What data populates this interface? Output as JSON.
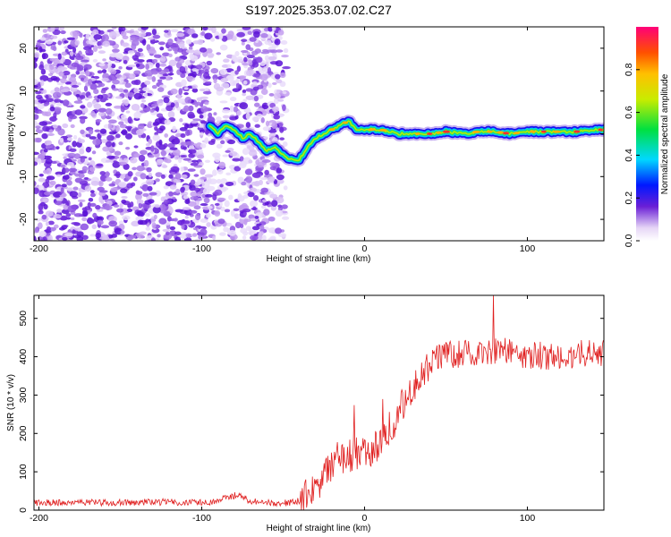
{
  "title": "S197.2025.353.07.02.C27",
  "chart_data": [
    {
      "type": "heatmap",
      "name": "spectrogram",
      "xlabel": "Height of straight line (km)",
      "ylabel": "Frequency (Hz)",
      "xlim": [
        -203,
        147
      ],
      "ylim": [
        -25,
        25
      ],
      "xticks": [
        -200,
        -100,
        0,
        100
      ],
      "yticks": [
        -20,
        -10,
        0,
        10,
        20
      ],
      "colorbar": {
        "label": "Normalized spectral amplitude",
        "range": [
          0,
          1
        ],
        "ticks": [
          0.0,
          0.2,
          0.4,
          0.6,
          0.8
        ],
        "tick_labels": [
          "0.0",
          "0.2",
          "0.4",
          "0.6",
          "0.8"
        ]
      },
      "ridge": {
        "x": [
          -95,
          -90,
          -85,
          -80,
          -75,
          -70,
          -65,
          -60,
          -55,
          -50,
          -45,
          -40,
          -35,
          -30,
          -25,
          -20,
          -15,
          -10,
          -5,
          0,
          10,
          20,
          30,
          40,
          50,
          60,
          70,
          80,
          90,
          100,
          110,
          120,
          130,
          147
        ],
        "y": [
          2,
          0,
          2,
          1,
          -1,
          0,
          -2,
          -4,
          -3,
          -5,
          -6,
          -6,
          -3,
          -1,
          0,
          1,
          2,
          3,
          1,
          1,
          1,
          0,
          0,
          0,
          0.5,
          0,
          0.5,
          0.5,
          0,
          0.5,
          0.5,
          0.5,
          0.5,
          1
        ]
      }
    },
    {
      "type": "line",
      "name": "snr",
      "xlabel": "Height of straight line (km)",
      "ylabel": "SNR (10 * v/v)",
      "xlim": [
        -203,
        147
      ],
      "ylim": [
        0,
        560
      ],
      "xticks": [
        -200,
        -100,
        0,
        100
      ],
      "yticks": [
        0,
        100,
        200,
        300,
        400,
        500
      ],
      "color": "#e02020",
      "series": [
        {
          "name": "SNR",
          "x": [
            -203,
            -190,
            -170,
            -150,
            -130,
            -110,
            -95,
            -85,
            -80,
            -75,
            -70,
            -60,
            -50,
            -45,
            -40,
            -35,
            -30,
            -25,
            -20,
            -15,
            -10,
            -5,
            0,
            5,
            10,
            15,
            20,
            25,
            30,
            35,
            40,
            45,
            50,
            60,
            70,
            80,
            90,
            100,
            110,
            120,
            130,
            147
          ],
          "values": [
            20,
            19,
            20,
            20,
            21,
            21,
            22,
            32,
            38,
            35,
            24,
            20,
            18,
            20,
            25,
            40,
            60,
            90,
            120,
            130,
            140,
            150,
            150,
            160,
            180,
            210,
            240,
            290,
            330,
            360,
            380,
            400,
            405,
            410,
            410,
            415,
            410,
            405,
            405,
            400,
            405,
            410
          ]
        }
      ]
    }
  ]
}
